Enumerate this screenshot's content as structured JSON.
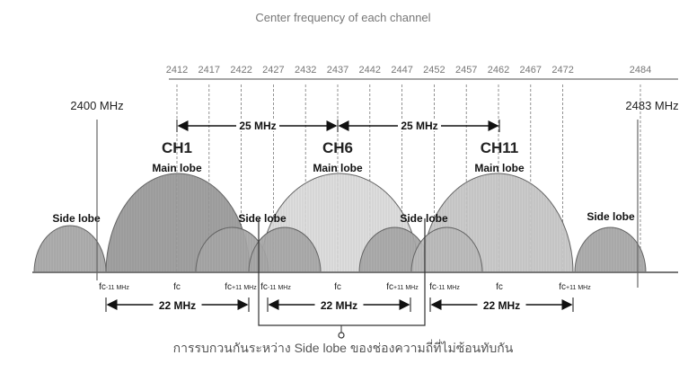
{
  "title": "Center frequency of each channel",
  "channel_frequencies": [
    "2412",
    "2417",
    "2422",
    "2427",
    "2432",
    "2437",
    "2442",
    "2447",
    "2452",
    "2457",
    "2462",
    "2467",
    "2472",
    "2484"
  ],
  "band_start": "2400 MHz",
  "band_end": "2483 MHz",
  "spacing_labels": [
    "25 MHz",
    "25 MHz"
  ],
  "channels": [
    {
      "name": "CH1",
      "lobe": "Main lobe",
      "color": "#9a9a9a"
    },
    {
      "name": "CH6",
      "lobe": "Main lobe",
      "color": "#dcdcdc"
    },
    {
      "name": "CH11",
      "lobe": "Main lobe",
      "color": "#c8c8c8"
    }
  ],
  "side_lobe_label": "Side lobe",
  "side_lobe_color": "#a8a8a8",
  "fc_labels": {
    "minus": "fc",
    "minus_sub": "-11 MHz",
    "center": "fc",
    "plus": "fc",
    "plus_sub": "+11 MHz"
  },
  "bandwidth_label": "22 MHz",
  "caption": "การรบกวนกันระหว่าง Side lobe ของช่องความถี่ที่ไม่ซ้อนทับกัน"
}
